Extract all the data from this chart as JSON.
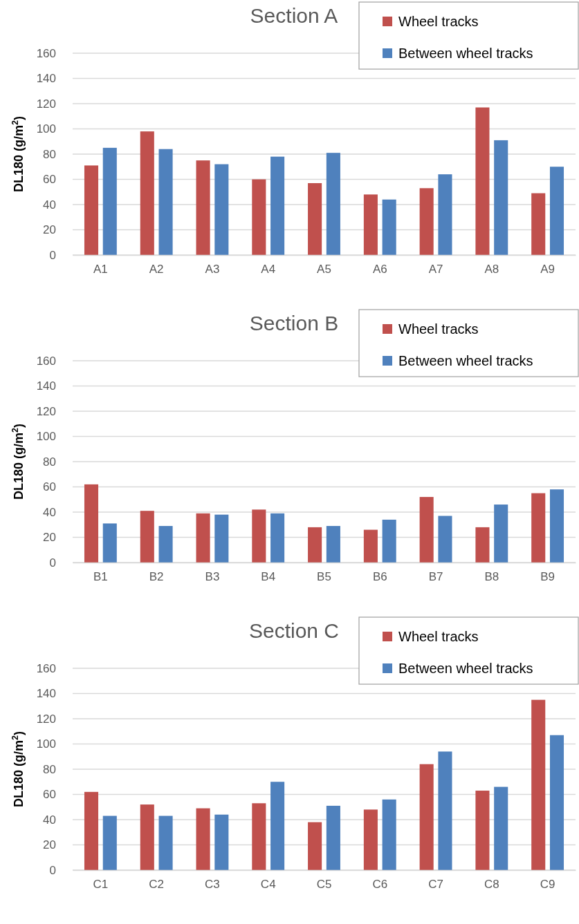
{
  "chart_data": [
    {
      "type": "bar",
      "title": "Section A",
      "ylabel": "DL180 (g/m$^{2}$)",
      "categories": [
        "A1",
        "A2",
        "A3",
        "A4",
        "A5",
        "A6",
        "A7",
        "A8",
        "A9"
      ],
      "ylim": [
        0,
        160
      ],
      "yticks": [
        0,
        20,
        40,
        60,
        80,
        100,
        120,
        140,
        160
      ],
      "grid": "y",
      "legend": "top right",
      "series": [
        {
          "name": "Wheel tracks",
          "color": "#c0504d",
          "values": [
            71,
            98,
            75,
            60,
            57,
            48,
            53,
            117,
            49
          ]
        },
        {
          "name": "Between wheel tracks",
          "color": "#4f81bd",
          "values": [
            85,
            84,
            72,
            78,
            81,
            44,
            64,
            91,
            70
          ]
        }
      ]
    },
    {
      "type": "bar",
      "title": "Section B",
      "ylabel": "DL180 (g/m$^{2}$)",
      "categories": [
        "B1",
        "B2",
        "B3",
        "B4",
        "B5",
        "B6",
        "B7",
        "B8",
        "B9"
      ],
      "ylim": [
        0,
        160
      ],
      "yticks": [
        0,
        20,
        40,
        60,
        80,
        100,
        120,
        140,
        160
      ],
      "grid": "y",
      "legend": "top right",
      "series": [
        {
          "name": "Wheel tracks",
          "color": "#c0504d",
          "values": [
            62,
            41,
            39,
            42,
            28,
            26,
            52,
            28,
            55
          ]
        },
        {
          "name": "Between wheel tracks",
          "color": "#4f81bd",
          "values": [
            31,
            29,
            38,
            39,
            29,
            34,
            37,
            46,
            58
          ]
        }
      ]
    },
    {
      "type": "bar",
      "title": "Section C",
      "ylabel": "DL180 (g/m$^{2}$)",
      "categories": [
        "C1",
        "C2",
        "C3",
        "C4",
        "C5",
        "C6",
        "C7",
        "C8",
        "C9"
      ],
      "ylim": [
        0,
        160
      ],
      "yticks": [
        0,
        20,
        40,
        60,
        80,
        100,
        120,
        140,
        160
      ],
      "grid": "y",
      "legend": "top right",
      "series": [
        {
          "name": "Wheel tracks",
          "color": "#c0504d",
          "values": [
            62,
            52,
            49,
            53,
            38,
            48,
            84,
            63,
            135
          ]
        },
        {
          "name": "Between wheel tracks",
          "color": "#4f81bd",
          "values": [
            43,
            43,
            44,
            70,
            51,
            56,
            94,
            66,
            107
          ]
        }
      ]
    }
  ]
}
